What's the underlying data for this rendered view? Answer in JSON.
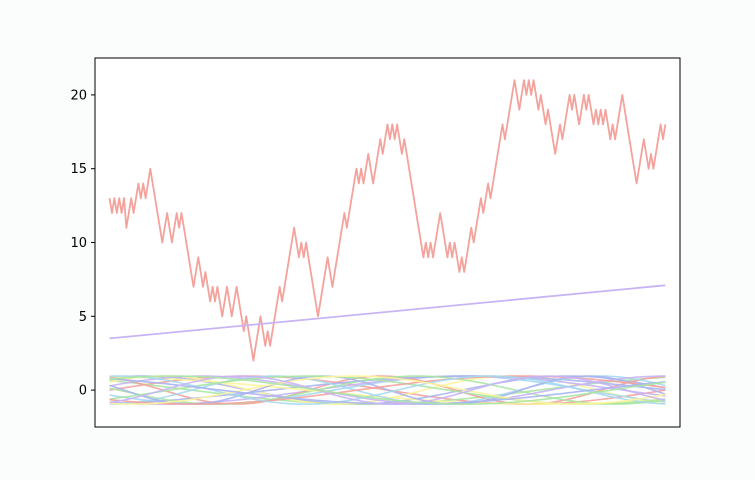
{
  "chart_data": {
    "type": "line",
    "title": "",
    "xlabel": "",
    "ylabel": "",
    "x_ticks_visible": false,
    "xlim": [
      0,
      100
    ],
    "ylim": [
      -2.5,
      22.5
    ],
    "y_ticks": [
      0,
      5,
      10,
      15,
      20
    ],
    "grid": false,
    "legend": "none",
    "series": [
      {
        "color": "#f4a29c",
        "style": "random-walk",
        "x_start": 0,
        "x_end": 100,
        "values": [
          13,
          12,
          13,
          12,
          13,
          12,
          13,
          11,
          12,
          13,
          12,
          13,
          14,
          13,
          14,
          13,
          14,
          15,
          14,
          13,
          12,
          11,
          10,
          11,
          12,
          11,
          10,
          11,
          12,
          11,
          12,
          11,
          10,
          9,
          8,
          7,
          8,
          9,
          8,
          7,
          8,
          7,
          6,
          7,
          6,
          7,
          6,
          5,
          6,
          7,
          6,
          5,
          6,
          7,
          6,
          5,
          4,
          5,
          4,
          3,
          2,
          3,
          4,
          5,
          4,
          3,
          4,
          3,
          4,
          5,
          6,
          7,
          6,
          7,
          8,
          9,
          10,
          11,
          10,
          9,
          10,
          9,
          10,
          9,
          8,
          7,
          6,
          5,
          6,
          7,
          8,
          9,
          8,
          7,
          8,
          9,
          10,
          11,
          12,
          11,
          12,
          13,
          14,
          15,
          14,
          15,
          14,
          15,
          16,
          15,
          14,
          15,
          16,
          17,
          16,
          17,
          18,
          17,
          18,
          17,
          18,
          17,
          16,
          17,
          16,
          15,
          14,
          13,
          12,
          11,
          10,
          9,
          10,
          9,
          10,
          9,
          10,
          11,
          12,
          11,
          10,
          9,
          10,
          9,
          10,
          9,
          8,
          9,
          8,
          9,
          10,
          11,
          10,
          11,
          12,
          13,
          12,
          13,
          14,
          13,
          14,
          15,
          16,
          17,
          18,
          17,
          18,
          19,
          20,
          21,
          20,
          19,
          20,
          21,
          20,
          21,
          20,
          21,
          20,
          19,
          20,
          19,
          18,
          19,
          18,
          17,
          16,
          17,
          18,
          17,
          18,
          19,
          20,
          19,
          20,
          19,
          18,
          19,
          20,
          19,
          20,
          19,
          18,
          19,
          18,
          19,
          18,
          19,
          18,
          17,
          18,
          17,
          18,
          19,
          20,
          19,
          18,
          17,
          16,
          15,
          14,
          15,
          16,
          17,
          16,
          15,
          16,
          15,
          16,
          17,
          18,
          17,
          18
        ]
      },
      {
        "color": "#c8b4f5",
        "style": "linear",
        "x": [
          0,
          100
        ],
        "values": [
          3.5,
          7.1
        ]
      }
    ],
    "oscillating_series": [
      {
        "color": "#f4a29c",
        "amplitude": 1,
        "freq": 1.0,
        "phase": 0.0
      },
      {
        "color": "#aab4f0",
        "amplitude": 1,
        "freq": 1.3,
        "phase": 1.1
      },
      {
        "color": "#a8e6a3",
        "amplitude": 1,
        "freq": 0.8,
        "phase": 2.4
      },
      {
        "color": "#fdf49c",
        "amplitude": 1,
        "freq": 1.6,
        "phase": 0.6
      },
      {
        "color": "#a6d8f0",
        "amplitude": 1,
        "freq": 1.1,
        "phase": 3.5
      },
      {
        "color": "#c8b4f5",
        "amplitude": 1,
        "freq": 0.9,
        "phase": 4.2
      },
      {
        "color": "#f4a29c",
        "amplitude": 1,
        "freq": 1.9,
        "phase": 2.0
      },
      {
        "color": "#aab4f0",
        "amplitude": 1,
        "freq": 0.7,
        "phase": 5.0
      },
      {
        "color": "#a8e6a3",
        "amplitude": 1,
        "freq": 1.4,
        "phase": 3.0
      },
      {
        "color": "#fdf49c",
        "amplitude": 1,
        "freq": 0.6,
        "phase": 1.8
      },
      {
        "color": "#a6d8f0",
        "amplitude": 1,
        "freq": 1.7,
        "phase": 4.7
      },
      {
        "color": "#c8b4f5",
        "amplitude": 1,
        "freq": 1.2,
        "phase": 0.3
      },
      {
        "color": "#aab4f0",
        "amplitude": 1,
        "freq": 2.1,
        "phase": 2.8
      },
      {
        "color": "#a8e6a3",
        "amplitude": 1,
        "freq": 1.0,
        "phase": 5.6
      },
      {
        "color": "#f4a29c",
        "amplitude": 1,
        "freq": 0.85,
        "phase": 3.9
      },
      {
        "color": "#a6d8f0",
        "amplitude": 1,
        "freq": 1.5,
        "phase": 1.4
      },
      {
        "color": "#fdf49c",
        "amplitude": 1,
        "freq": 1.25,
        "phase": 4.4
      },
      {
        "color": "#aab4f0",
        "amplitude": 1,
        "freq": 0.75,
        "phase": 2.2
      },
      {
        "color": "#c8b4f5",
        "amplitude": 1,
        "freq": 1.8,
        "phase": 5.2
      },
      {
        "color": "#a8e6a3",
        "amplitude": 1,
        "freq": 0.95,
        "phase": 0.9
      }
    ]
  }
}
